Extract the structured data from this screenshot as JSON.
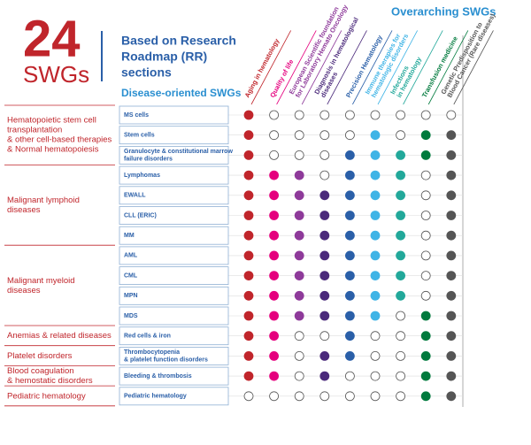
{
  "header": {
    "number": "24",
    "unit": "SWGs",
    "title_lines": [
      "Based on Research",
      "Roadmap (RR)",
      "sections"
    ]
  },
  "overarching_title": "Overarching SWGs",
  "disease_title": "Disease-oriented SWGs",
  "columns": [
    {
      "label_lines": [
        "Aging in hematology"
      ],
      "color": "#c0252b"
    },
    {
      "label_lines": [
        "Quality of life"
      ],
      "color": "#e5007e"
    },
    {
      "label_lines": [
        "European Scientific foundation",
        "for Laboratory Hemato Oncology"
      ],
      "color": "#8e3a9a"
    },
    {
      "label_lines": [
        "Diagnosis in hematological",
        "diseases"
      ],
      "color": "#4b2a7b"
    },
    {
      "label_lines": [
        "Precision Hematology"
      ],
      "color": "#2a5fa8"
    },
    {
      "label_lines": [
        "Immune therapies for",
        "hematologic disorders"
      ],
      "color": "#3fb4e6"
    },
    {
      "label_lines": [
        "Infections",
        "in hematology"
      ],
      "color": "#22a89a"
    },
    {
      "label_lines": [
        "Transfusion medicine"
      ],
      "color": "#007a3d"
    },
    {
      "label_lines": [
        "Genetic Predisposition to",
        "Blood Cancer (Rare diseases)"
      ],
      "color": "#555555"
    }
  ],
  "groups": [
    {
      "label_lines": [
        "Hematopoietic stem cell",
        "transplantation",
        "& other cell-based therapies",
        "& Normal hematopoiesis"
      ],
      "rows": [
        {
          "name_lines": [
            "MS cells"
          ],
          "cells": [
            1,
            0,
            0,
            0,
            0,
            0,
            0,
            0,
            0
          ]
        },
        {
          "name_lines": [
            "Stem cells"
          ],
          "cells": [
            1,
            0,
            0,
            0,
            0,
            1,
            0,
            1,
            1
          ]
        },
        {
          "name_lines": [
            "Granulocyte & constitutional marrow",
            "failure disorders"
          ],
          "cells": [
            1,
            0,
            0,
            0,
            1,
            1,
            1,
            1,
            1
          ]
        }
      ]
    },
    {
      "label_lines": [
        "Malignant lymphoid",
        "diseases"
      ],
      "rows": [
        {
          "name_lines": [
            "Lymphomas"
          ],
          "cells": [
            1,
            1,
            1,
            0,
            1,
            1,
            1,
            0,
            1
          ]
        },
        {
          "name_lines": [
            "EWALL"
          ],
          "cells": [
            1,
            1,
            1,
            1,
            1,
            1,
            1,
            0,
            1
          ]
        },
        {
          "name_lines": [
            "CLL (ERIC)"
          ],
          "cells": [
            1,
            1,
            1,
            1,
            1,
            1,
            1,
            0,
            1
          ]
        },
        {
          "name_lines": [
            "MM"
          ],
          "cells": [
            1,
            1,
            1,
            1,
            1,
            1,
            1,
            0,
            1
          ]
        }
      ]
    },
    {
      "label_lines": [
        "Malignant myeloid",
        "diseases"
      ],
      "rows": [
        {
          "name_lines": [
            "AML"
          ],
          "cells": [
            1,
            1,
            1,
            1,
            1,
            1,
            1,
            0,
            1
          ]
        },
        {
          "name_lines": [
            "CML"
          ],
          "cells": [
            1,
            1,
            1,
            1,
            1,
            1,
            1,
            0,
            1
          ]
        },
        {
          "name_lines": [
            "MPN"
          ],
          "cells": [
            1,
            1,
            1,
            1,
            1,
            1,
            1,
            0,
            1
          ]
        },
        {
          "name_lines": [
            "MDS"
          ],
          "cells": [
            1,
            1,
            1,
            1,
            1,
            1,
            0,
            1,
            1
          ]
        }
      ]
    },
    {
      "label_lines": [
        "Anemias & related diseases"
      ],
      "rows": [
        {
          "name_lines": [
            "Red cells & iron"
          ],
          "cells": [
            1,
            1,
            0,
            0,
            1,
            0,
            0,
            1,
            1
          ]
        }
      ]
    },
    {
      "label_lines": [
        "Platelet disorders"
      ],
      "rows": [
        {
          "name_lines": [
            "Thrombocytopenia",
            "& platelet function disorders"
          ],
          "cells": [
            1,
            1,
            0,
            1,
            1,
            0,
            0,
            1,
            1
          ]
        }
      ]
    },
    {
      "label_lines": [
        "Blood coagulation",
        "& hemostatic disorders"
      ],
      "rows": [
        {
          "name_lines": [
            "Bleeding & thrombosis"
          ],
          "cells": [
            1,
            1,
            0,
            1,
            0,
            0,
            0,
            1,
            1
          ]
        }
      ]
    },
    {
      "label_lines": [
        "Pediatric hematology"
      ],
      "rows": [
        {
          "name_lines": [
            "Pediatric hematology"
          ],
          "cells": [
            0,
            0,
            0,
            0,
            0,
            0,
            0,
            1,
            1
          ]
        }
      ]
    }
  ]
}
